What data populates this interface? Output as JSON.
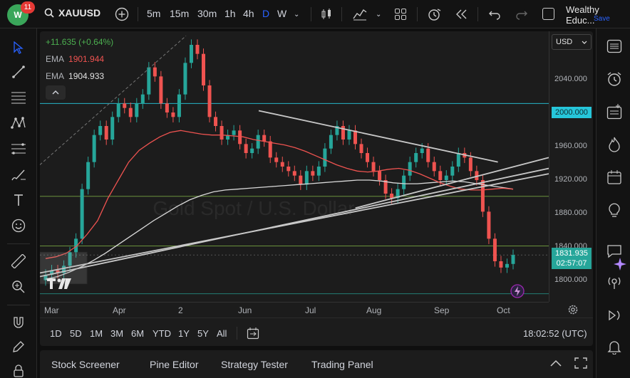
{
  "topbar": {
    "notifications": "11",
    "symbol": "XAUUSD",
    "timeframes": [
      {
        "label": "5m",
        "active": false
      },
      {
        "label": "15m",
        "active": false
      },
      {
        "label": "30m",
        "active": false
      },
      {
        "label": "1h",
        "active": false
      },
      {
        "label": "4h",
        "active": false
      },
      {
        "label": "D",
        "active": true
      },
      {
        "label": "W",
        "active": false
      }
    ],
    "layout_name": "Wealthy Educ...",
    "save_label": "Save"
  },
  "legend": {
    "change": "+11.635 (+0.64%)",
    "ema_label_1": "EMA",
    "ema_value_1": "1901.944",
    "ema_label_2": "EMA",
    "ema_value_2": "1904.933",
    "collapse_glyph": "^"
  },
  "price_scale": {
    "currency": "USD",
    "ticks": [
      "2040.000",
      "1960.000",
      "1920.000",
      "1880.000",
      "1840.000",
      "1800.000"
    ],
    "level_label": "2000.000",
    "current_price": "1831.935",
    "countdown": "02:57:07"
  },
  "time_axis": {
    "ticks": [
      "Mar",
      "Apr",
      "2",
      "Jun",
      "Jul",
      "Aug",
      "Sep",
      "Oct"
    ]
  },
  "ranges": [
    "1D",
    "5D",
    "1M",
    "3M",
    "6M",
    "YTD",
    "1Y",
    "5Y",
    "All"
  ],
  "clock": "18:02:52 (UTC)",
  "bottom_tabs": [
    "Stock Screener",
    "Pine Editor",
    "Strategy Tester",
    "Trading Panel"
  ],
  "watermark": "Gold Spot / U.S. Dollar",
  "colors": {
    "up": "#26a69a",
    "down": "#ef5350",
    "ema_fast": "#ef5350",
    "ema_slow": "#d9d9d9",
    "level": "#26c6da"
  },
  "chart_data": {
    "type": "candlestick",
    "symbol": "XAUUSD",
    "interval": "D",
    "ylim": [
      1780,
      2080
    ],
    "x_ticks": [
      "Mar",
      "Apr",
      "2",
      "Jun",
      "Jul",
      "Aug",
      "Sep",
      "Oct"
    ],
    "horizontal_levels": [
      2000,
      1897,
      1842,
      1789
    ],
    "last_price": 1831.935,
    "close_path": [
      1810,
      1815,
      1812,
      1820,
      1835,
      1850,
      1905,
      1935,
      1965,
      1975,
      1960,
      1985,
      2000,
      1995,
      1985,
      2000,
      2010,
      2040,
      2030,
      2000,
      1990,
      1985,
      2010,
      2045,
      2065,
      2055,
      2020,
      1985,
      1975,
      1960,
      1965,
      1970,
      1955,
      1945,
      1950,
      1965,
      1958,
      1940,
      1935,
      1930,
      1925,
      1920,
      1910,
      1925,
      1920,
      1930,
      1950,
      1965,
      1975,
      1960,
      1970,
      1955,
      1945,
      1935,
      1925,
      1915,
      1900,
      1895,
      1905,
      1920,
      1935,
      1945,
      1950,
      1935,
      1925,
      1915,
      1920,
      1930,
      1945,
      1940,
      1925,
      1915,
      1880,
      1850,
      1825,
      1818,
      1822,
      1832
    ],
    "ema_fast": [
      1828,
      1830,
      1834,
      1842,
      1855,
      1870,
      1895,
      1915,
      1935,
      1948,
      1956,
      1963,
      1968,
      1970,
      1968,
      1966,
      1965,
      1965,
      1964,
      1963,
      1960,
      1958,
      1956,
      1954,
      1951,
      1947,
      1942,
      1937,
      1932,
      1928,
      1925,
      1924,
      1925,
      1927,
      1928,
      1926,
      1922,
      1917,
      1912,
      1908,
      1905,
      1904,
      1904,
      1905,
      1906,
      1905
    ],
    "ema_slow": [
      1805,
      1808,
      1813,
      1819,
      1826,
      1834,
      1843,
      1852,
      1861,
      1870,
      1878,
      1886,
      1893,
      1898,
      1902,
      1904,
      1905,
      1906,
      1907,
      1908,
      1909,
      1910,
      1911,
      1912,
      1913,
      1914,
      1915,
      1915,
      1914,
      1912,
      1911,
      1911,
      1912,
      1913,
      1914,
      1913,
      1911,
      1909,
      1907,
      1905
    ],
    "trendlines": [
      {
        "from": [
          0.0,
          1808
        ],
        "to": [
          1.0,
          1928
        ]
      },
      {
        "from": [
          0.0,
          1812
        ],
        "to": [
          1.0,
          1922
        ]
      },
      {
        "from": [
          0.43,
          1992
        ],
        "to": [
          0.9,
          1935
        ]
      },
      {
        "from": [
          0.62,
          1884
        ],
        "to": [
          1.0,
          1940
        ]
      }
    ]
  }
}
